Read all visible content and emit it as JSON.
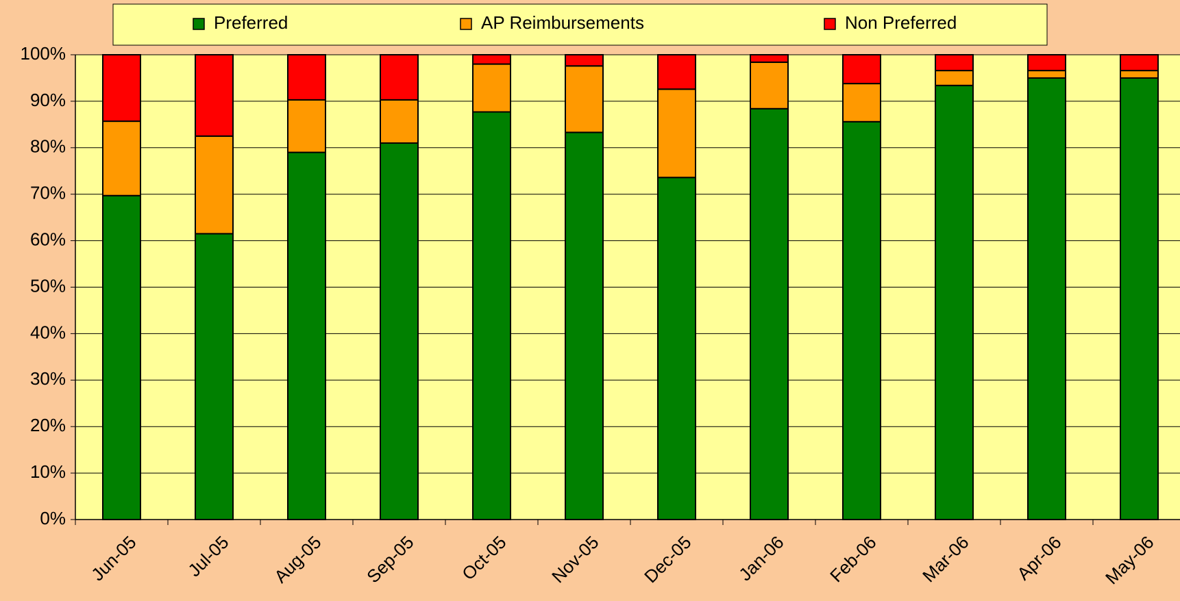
{
  "chart_data": {
    "type": "stacked_bar",
    "categories": [
      "Jun-05",
      "Jul-05",
      "Aug-05",
      "Sep-05",
      "Oct-05",
      "Nov-05",
      "Dec-05",
      "Jan-06",
      "Feb-06",
      "Mar-06",
      "Apr-06",
      "May-06"
    ],
    "series": [
      {
        "name": "Preferred",
        "color": "#008000",
        "values": [
          69.7,
          61.5,
          79,
          81,
          87.7,
          83.3,
          73.6,
          88.4,
          85.6,
          93.4,
          95,
          95
        ]
      },
      {
        "name": "AP Reimbursements",
        "color": "#ff9900",
        "values": [
          16,
          21,
          11.3,
          9.3,
          10.3,
          14.3,
          19,
          10,
          8.2,
          3.2,
          1.6,
          1.6
        ]
      },
      {
        "name": "Non Preferred",
        "color": "#ff0000",
        "values": [
          14.3,
          17.5,
          9.7,
          9.7,
          2,
          2.4,
          7.4,
          1.6,
          6.2,
          3.4,
          3.4,
          3.4
        ]
      }
    ],
    "ylim": [
      0,
      100
    ],
    "yticks": [
      {
        "value": 0,
        "label": "0%"
      },
      {
        "value": 10,
        "label": "10%"
      },
      {
        "value": 20,
        "label": "20%"
      },
      {
        "value": 30,
        "label": "30%"
      },
      {
        "value": 40,
        "label": "40%"
      },
      {
        "value": 50,
        "label": "50%"
      },
      {
        "value": 60,
        "label": "60%"
      },
      {
        "value": 70,
        "label": "70%"
      },
      {
        "value": 80,
        "label": "80%"
      },
      {
        "value": 90,
        "label": "90%"
      },
      {
        "value": 100,
        "label": "100%"
      }
    ],
    "grid": true,
    "legend": "top"
  }
}
